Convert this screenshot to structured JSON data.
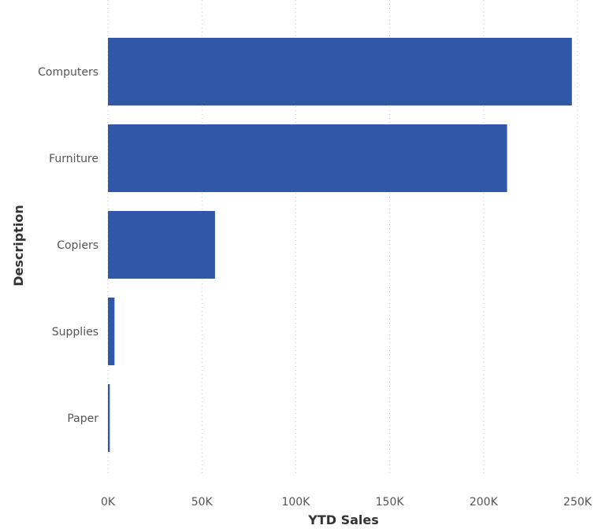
{
  "chart_data": {
    "type": "bar",
    "orientation": "horizontal",
    "categories": [
      "Computers",
      "Furniture",
      "Copiers",
      "Supplies",
      "Paper"
    ],
    "values": [
      247000,
      212500,
      57000,
      3500,
      1000
    ],
    "xlabel": "YTD Sales",
    "ylabel": "Description",
    "xlim": [
      0,
      250000
    ],
    "x_ticks": [
      {
        "value": 0,
        "label": "0K"
      },
      {
        "value": 50000,
        "label": "50K"
      },
      {
        "value": 100000,
        "label": "100K"
      },
      {
        "value": 150000,
        "label": "150K"
      },
      {
        "value": 200000,
        "label": "200K"
      },
      {
        "value": 250000,
        "label": "250K"
      }
    ],
    "grid": "vertical dotted",
    "bar_color": "#3057a8"
  }
}
